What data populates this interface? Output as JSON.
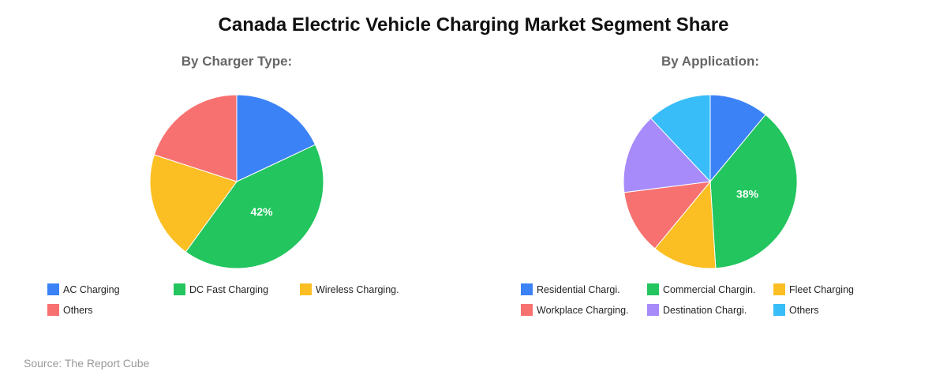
{
  "title": "Canada Electric Vehicle Charging Market Segment Share",
  "source": "Source: The Report Cube",
  "chart_data": [
    {
      "type": "pie",
      "title": "By Charger Type:",
      "categories": [
        "AC Charging",
        "DC Fast Charging",
        "Wireless Charging.",
        "Others"
      ],
      "values": [
        18,
        42,
        20,
        20
      ],
      "colors": [
        "#3b82f6",
        "#22c55e",
        "#fbbf24",
        "#f87171"
      ],
      "data_labels": [
        "",
        "42%",
        "",
        ""
      ],
      "legend_position": "bottom"
    },
    {
      "type": "pie",
      "title": "By Application:",
      "categories": [
        "Residential Chargi.",
        "Commercial Chargin.",
        "Fleet Charging",
        "Workplace Charging.",
        "Destination Chargi.",
        "Others"
      ],
      "values": [
        11,
        38,
        12,
        12,
        15,
        12
      ],
      "colors": [
        "#3b82f6",
        "#22c55e",
        "#fbbf24",
        "#f87171",
        "#a78bfa",
        "#38bdf8"
      ],
      "data_labels": [
        "",
        "38%",
        "",
        "",
        "",
        ""
      ],
      "legend_position": "bottom"
    }
  ]
}
